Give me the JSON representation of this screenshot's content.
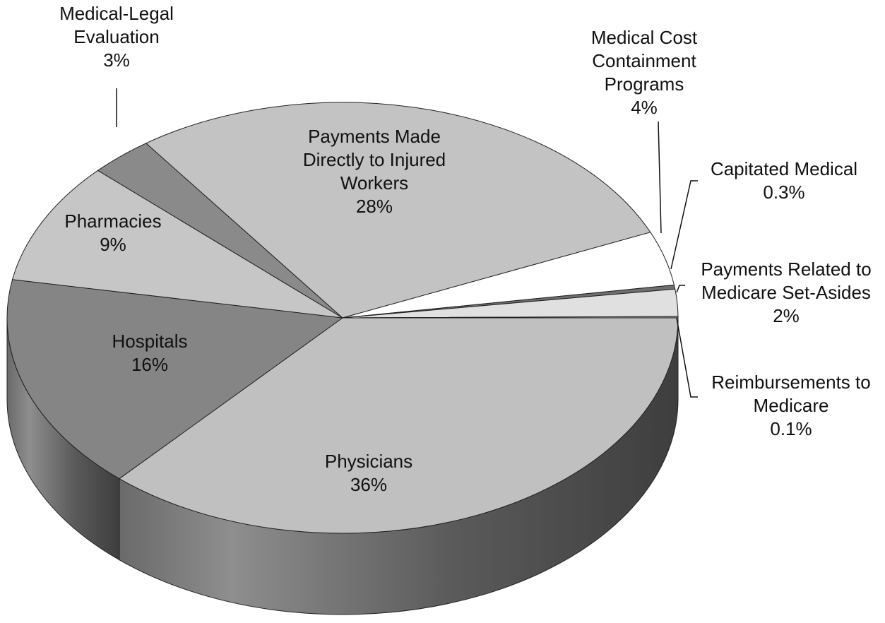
{
  "chart_data": {
    "type": "pie",
    "categories": [
      "Physicians",
      "Hospitals",
      "Pharmacies",
      "Medical-Legal\nEvaluation",
      "Payments Made\nDirectly to Injured\nWorkers",
      "Medical Cost\nContainment\nPrograms",
      "Capitated Medical",
      "Payments Related to\nMedicare Set-Asides",
      "Reimbursements to\nMedicare"
    ],
    "values": [
      36,
      16,
      9,
      3,
      28,
      4,
      0.3,
      2,
      0.1
    ],
    "value_labels": [
      "36%",
      "16%",
      "9%",
      "3%",
      "28%",
      "4%",
      "0.3%",
      "2%",
      "0.1%"
    ],
    "colors": [
      "#c0c0c0",
      "#858585",
      "#c6c6c6",
      "#8a8a8a",
      "#c3c3c3",
      "#ffffff",
      "#6e6e6e",
      "#e0e0e0",
      "#9a9a9a"
    ]
  }
}
